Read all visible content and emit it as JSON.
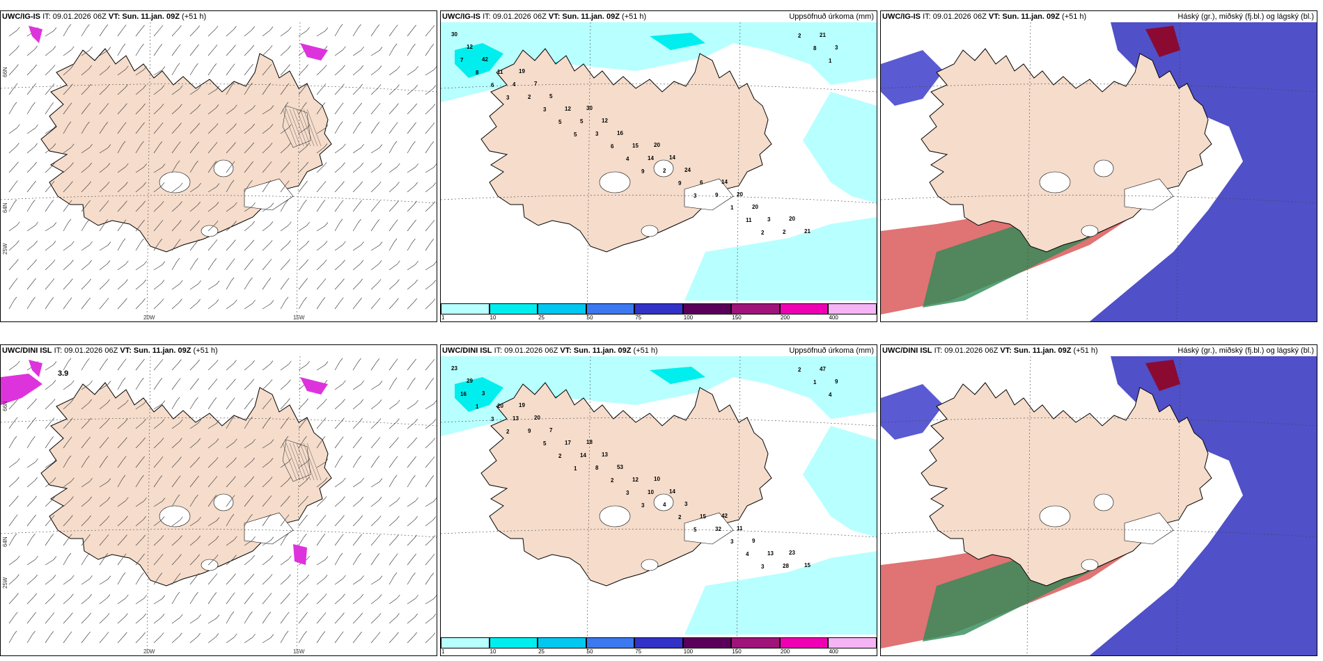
{
  "panels": [
    {
      "model": "UWC/IG-IS",
      "it": "IT: 09.01.2026 06Z",
      "vt_label": "VT:",
      "vt": "Sun. 11.jan. 09Z",
      "lead": "(+51 h)",
      "right_title": "",
      "type": "wind"
    },
    {
      "model": "UWC/IG-IS",
      "it": "IT: 09.01.2026 06Z",
      "vt_label": "VT:",
      "vt": "Sun. 11.jan. 09Z",
      "lead": "(+51 h)",
      "right_title": "Uppsöfnuð úrkoma (mm)",
      "type": "precip"
    },
    {
      "model": "UWC/IG-IS",
      "it": "IT: 09.01.2026 06Z",
      "vt_label": "VT:",
      "vt": "Sun. 11.jan. 09Z",
      "lead": "(+51 h)",
      "right_title": "Háský (gr.), miðský (fj.bl.) og lágský (bl.)",
      "type": "cloud"
    },
    {
      "model": "UWC/DINI ISL",
      "it": "IT: 09.01.2026 06Z",
      "vt_label": "VT:",
      "vt": "Sun. 11.jan. 09Z",
      "lead": "(+51 h)",
      "right_title": "",
      "type": "wind"
    },
    {
      "model": "UWC/DINI ISL",
      "it": "IT: 09.01.2026 06Z",
      "vt_label": "VT:",
      "vt": "Sun. 11.jan. 09Z",
      "lead": "(+51 h)",
      "right_title": "Uppsöfnuð úrkoma (mm)",
      "type": "precip"
    },
    {
      "model": "UWC/DINI ISL",
      "it": "IT: 09.01.2026 06Z",
      "vt_label": "VT:",
      "vt": "Sun. 11.jan. 09Z",
      "lead": "(+51 h)",
      "right_title": "Háský (gr.), miðský (fj.bl.) og lágský (bl.)",
      "type": "cloud"
    }
  ],
  "axis_labels": {
    "lat66": "66N",
    "lat64": "64N",
    "lon25": "25W",
    "lon20": "20W",
    "lon15": "15W"
  },
  "colorbar": {
    "labels": [
      "1",
      "10",
      "25",
      "50",
      "75",
      "100",
      "150",
      "200",
      "400"
    ],
    "colors": [
      "#b8ffff",
      "#00eeee",
      "#00c8f0",
      "#3c78f0",
      "#3232c8",
      "#5a005a",
      "#a0147a",
      "#f000b4",
      "#f5b4f5"
    ]
  },
  "precip_numbers_top": [
    "30",
    "19",
    "30",
    "20",
    "14",
    "20",
    "12",
    "7",
    "12",
    "14",
    "20",
    "21",
    "42",
    "5",
    "16",
    "24",
    "20",
    "21",
    "11",
    "12",
    "15",
    "6",
    "3",
    "3",
    "4",
    "5",
    "14",
    "9",
    "2",
    "7",
    "2",
    "3",
    "2",
    "1",
    "2",
    "8",
    "3",
    "6",
    "9",
    "11",
    "8",
    "6",
    "5",
    "4",
    "3",
    "2",
    "1",
    "3",
    "5",
    "9"
  ],
  "precip_numbers_bottom": [
    "23",
    "19",
    "18",
    "10",
    "42",
    "23",
    "29",
    "20",
    "13",
    "14",
    "11",
    "15",
    "3",
    "7",
    "53",
    "3",
    "9",
    "47",
    "20",
    "17",
    "12",
    "15",
    "13",
    "9",
    "13",
    "14",
    "10",
    "32",
    "28",
    "16",
    "9",
    "8",
    "4",
    "3",
    "2",
    "1",
    "5",
    "2",
    "2",
    "4",
    "1",
    "3",
    "2",
    "3",
    "5",
    "3",
    "4",
    "2",
    "1",
    "3"
  ],
  "wind_label": "3.9"
}
